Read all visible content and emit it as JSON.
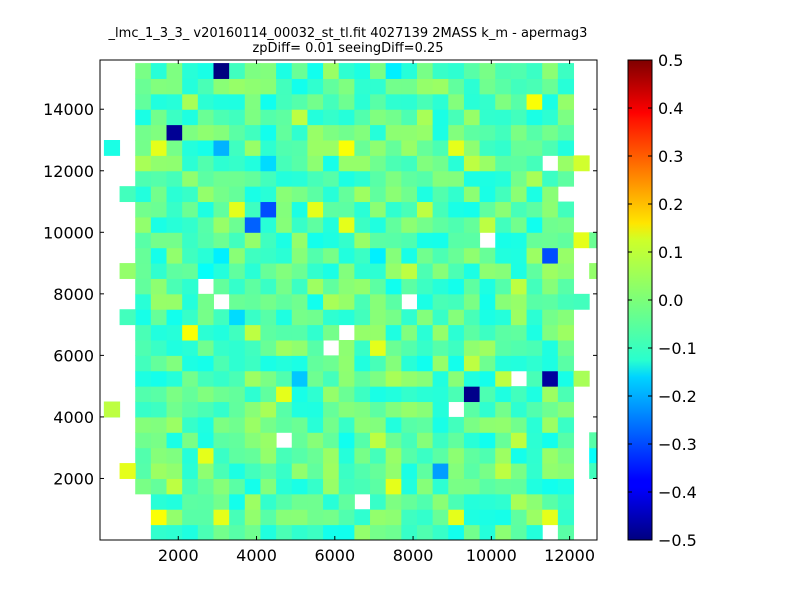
{
  "chart_data": {
    "type": "heatmap",
    "title": "_lmc_1_3_3_ v20160114_00032_st_tl.fit 4027139 2MASS k_m - apermag3",
    "subtitle": "zpDiff= 0.01 seeingDiff=0.25",
    "xlabel": "",
    "ylabel": "",
    "xlim": [
      0,
      12700
    ],
    "ylim": [
      0,
      15600
    ],
    "xticks": [
      "2000",
      "4000",
      "6000",
      "8000",
      "10000",
      "12000"
    ],
    "xtick_values": [
      2000,
      4000,
      6000,
      8000,
      10000,
      12000
    ],
    "yticks": [
      "2000",
      "4000",
      "6000",
      "8000",
      "10000",
      "12000",
      "14000"
    ],
    "ytick_values": [
      2000,
      4000,
      6000,
      8000,
      10000,
      12000,
      14000
    ],
    "colormap": "jet",
    "clim": [
      -0.5,
      0.5
    ],
    "colorbar_ticks": [
      "0.5",
      "0.4",
      "0.3",
      "0.2",
      "0.1",
      "0.0",
      "−0.1",
      "−0.2",
      "−0.3",
      "−0.4",
      "−0.5"
    ],
    "colorbar_tick_values": [
      0.5,
      0.4,
      0.3,
      0.2,
      0.1,
      0.0,
      -0.1,
      -0.2,
      -0.3,
      -0.4,
      -0.5
    ],
    "grid": false,
    "cell_size": [
      400,
      500
    ],
    "x_origin": 100,
    "y_origin": 0,
    "main_cols": [
      2,
      29
    ],
    "main_rows": [
      0,
      30
    ],
    "base_value": -0.04,
    "cells_note": "cells are listed as [col, row, value] where x = x_origin + col*cell_w and y = y_origin + row*cell_h",
    "outliers": [
      [
        7,
        30,
        -0.5
      ],
      [
        4,
        26,
        -0.48
      ],
      [
        23,
        9,
        -0.49
      ],
      [
        28,
        10,
        -0.47
      ],
      [
        10,
        21,
        -0.3
      ],
      [
        9,
        20,
        -0.28
      ],
      [
        28,
        18,
        -0.3
      ],
      [
        21,
        4,
        -0.22
      ],
      [
        8,
        14,
        -0.16
      ],
      [
        10,
        24,
        -0.16
      ],
      [
        7,
        25,
        -0.2
      ],
      [
        12,
        10,
        -0.18
      ],
      [
        17,
        18,
        -0.14
      ],
      [
        18,
        30,
        -0.14
      ],
      [
        7,
        18,
        -0.14
      ],
      [
        6,
        17,
        -0.12
      ],
      [
        5,
        13,
        0.12
      ],
      [
        17,
        12,
        0.1
      ],
      [
        8,
        21,
        0.1
      ],
      [
        13,
        21,
        0.1
      ],
      [
        15,
        20,
        0.1
      ],
      [
        11,
        9,
        0.1
      ],
      [
        16,
        2,
        0.12
      ],
      [
        3,
        1,
        0.12
      ],
      [
        7,
        1,
        0.1
      ],
      [
        6,
        5,
        0.1
      ],
      [
        3,
        25,
        0.1
      ],
      [
        15,
        25,
        0.12
      ],
      [
        22,
        25,
        0.1
      ],
      [
        27,
        28,
        0.12
      ],
      [
        28,
        1,
        0.1
      ],
      [
        22,
        1,
        0.1
      ],
      [
        18,
        3,
        0.1
      ],
      [
        23,
        24,
        0.06
      ],
      [
        24,
        20,
        0.06
      ],
      [
        26,
        16,
        0.06
      ],
      [
        26,
        6,
        0.06
      ],
      [
        23,
        11,
        0.06
      ],
      [
        14,
        12,
        0.06
      ],
      [
        9,
        13,
        0.06
      ],
      [
        11,
        6,
        0.06
      ],
      [
        4,
        3,
        0.06
      ],
      [
        12,
        27,
        0.06
      ],
      [
        20,
        21,
        0.06
      ],
      [
        19,
        17,
        0.06
      ],
      [
        25,
        4,
        0.06
      ],
      [
        25,
        10,
        0.06
      ],
      [
        17,
        6,
        0.06
      ],
      [
        10,
        5,
        0.02
      ],
      [
        19,
        8,
        0.02
      ],
      [
        21,
        13,
        0.02
      ],
      [
        6,
        22,
        0.02
      ],
      [
        3,
        20,
        -0.1
      ],
      [
        14,
        17,
        -0.1
      ],
      [
        24,
        14,
        -0.1
      ],
      [
        12,
        11,
        -0.1
      ],
      [
        20,
        15,
        -0.1
      ],
      [
        4,
        6,
        -0.1
      ],
      [
        27,
        27,
        -0.1
      ],
      [
        26,
        19,
        -0.1
      ],
      [
        13,
        9,
        -0.08
      ],
      [
        18,
        28,
        -0.08
      ],
      [
        8,
        12,
        -0.08
      ],
      [
        5,
        16,
        -0.08
      ],
      [
        29,
        22,
        -0.06
      ],
      [
        2,
        11,
        -0.06
      ],
      [
        16,
        14,
        -0.06
      ],
      [
        22,
        7,
        -0.06
      ],
      [
        25,
        26,
        -0.06
      ],
      [
        11,
        29,
        -0.06
      ],
      [
        9,
        4,
        -0.06
      ],
      [
        15,
        3,
        -0.06
      ],
      [
        2,
        24,
        0.04
      ],
      [
        5,
        28,
        0.04
      ],
      [
        20,
        27,
        0.04
      ],
      [
        27,
        23,
        0.04
      ],
      [
        14,
        15,
        0.04
      ],
      [
        10,
        8,
        0.04
      ],
      [
        26,
        2,
        0.04
      ],
      [
        18,
        10,
        0.04
      ]
    ],
    "missing": [
      [
        29,
        22
      ],
      [
        24,
        19
      ],
      [
        28,
        24
      ],
      [
        15,
        13
      ],
      [
        14,
        12
      ],
      [
        7,
        15
      ],
      [
        11,
        6
      ],
      [
        16,
        2
      ],
      [
        22,
        8
      ],
      [
        26,
        10
      ],
      [
        6,
        16
      ],
      [
        19,
        15
      ],
      [
        28,
        0
      ],
      [
        2,
        0
      ],
      [
        2,
        1
      ],
      [
        2,
        2
      ]
    ],
    "edge_cells": [
      [
        1,
        4,
        0.1
      ],
      [
        0,
        8,
        -0.1
      ],
      [
        1,
        14,
        -0.06
      ],
      [
        0,
        8,
        0.06
      ],
      [
        0,
        25,
        -0.1
      ],
      [
        1,
        17,
        0.02
      ],
      [
        1,
        22,
        -0.06
      ],
      [
        30,
        19,
        0.1
      ],
      [
        31,
        19,
        -0.02
      ],
      [
        30,
        15,
        -0.06
      ],
      [
        30,
        24,
        0.08
      ],
      [
        31,
        17,
        0.02
      ],
      [
        31,
        5,
        -0.12
      ],
      [
        31,
        6,
        -0.04
      ],
      [
        30,
        10,
        0.04
      ],
      [
        31,
        4,
        -0.06
      ]
    ]
  }
}
